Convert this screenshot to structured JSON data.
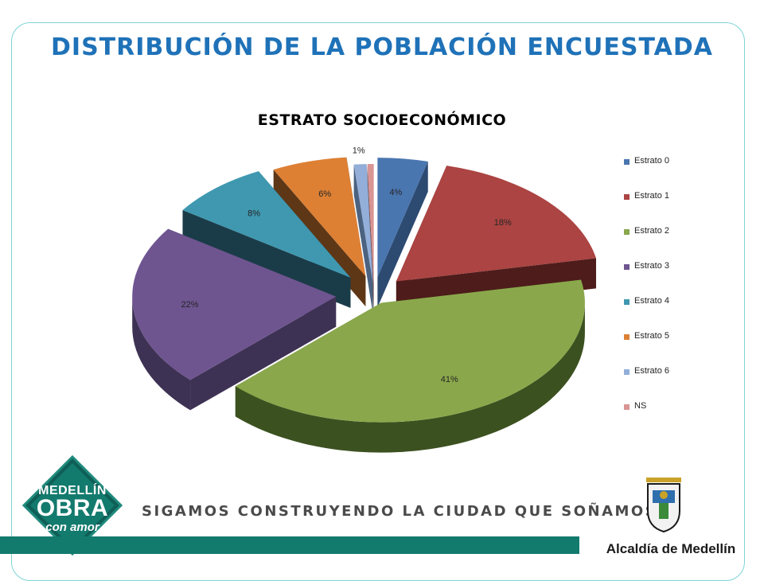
{
  "slide": {
    "title": "DISTRIBUCIÓN DE LA POBLACIÓN ENCUESTADA"
  },
  "chart_data": {
    "type": "pie",
    "title": "ESTRATO SOCIOECONÓMICO",
    "style": "3d-exploded",
    "legend_position": "right",
    "categories": [
      "Estrato 0",
      "Estrato 1",
      "Estrato 2",
      "Estrato 3",
      "Estrato 4",
      "Estrato 5",
      "Estrato 6",
      "NS"
    ],
    "values": [
      4,
      18,
      41,
      22,
      8,
      6,
      1,
      0.5
    ],
    "labels": [
      "4%",
      "18%",
      "41%",
      "22%",
      "8%",
      "6%",
      "1%",
      ""
    ],
    "colors": [
      "#4a76b0",
      "#ab4442",
      "#8aa84b",
      "#6e5590",
      "#3f98b0",
      "#dd8034",
      "#92aed9",
      "#d99594"
    ],
    "side_colors": [
      "#2d4a71",
      "#4e1c1b",
      "#3c5120",
      "#3e3254",
      "#1a3c48",
      "#5e3716",
      "#4b6280",
      "#7d5554"
    ]
  },
  "legend": {
    "items": [
      "Estrato 0",
      "Estrato 1",
      "Estrato 2",
      "Estrato 3",
      "Estrato 4",
      "Estrato 5",
      "Estrato 6",
      "NS"
    ]
  },
  "footer": {
    "logo_line1": "MEDELLÍN",
    "logo_line2": "OBRA",
    "logo_line3": "con amor",
    "slogan": "SIGAMOS CONSTRUYENDO LA CIUDAD QUE SOÑAMOS",
    "institution": "Alcaldía de Medellín"
  }
}
